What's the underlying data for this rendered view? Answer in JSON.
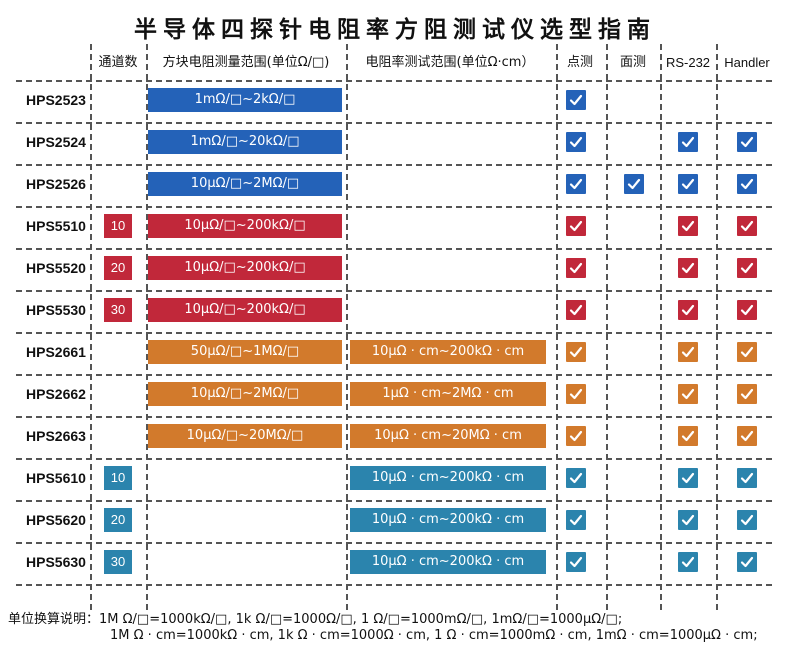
{
  "title": "半导体四探针电阻率方阻测试仪选型指南",
  "headers": {
    "channels": "通道数",
    "sheet_range": "方块电阻测量范围(单位Ω/□)",
    "resistivity_range": "电阻率测试范围(单位Ω·cm）",
    "point": "点测",
    "area": "面测",
    "rs232": "RS-232",
    "handler": "Handler"
  },
  "colors": {
    "blue": "#2462b8",
    "red": "#c1283a",
    "orange": "#d27a2c",
    "teal": "#2b84ad"
  },
  "check_icon": "checkmark-icon",
  "rows": [
    {
      "model": "HPS2523",
      "channels": "",
      "sheet": "1mΩ/□~2kΩ/□",
      "resistivity": "",
      "color": "blue",
      "point": true,
      "area": false,
      "rs232": false,
      "handler": false
    },
    {
      "model": "HPS2524",
      "channels": "",
      "sheet": "1mΩ/□~20kΩ/□",
      "resistivity": "",
      "color": "blue",
      "point": true,
      "area": false,
      "rs232": true,
      "handler": true
    },
    {
      "model": "HPS2526",
      "channels": "",
      "sheet": "10μΩ/□~2MΩ/□",
      "resistivity": "",
      "color": "blue",
      "point": true,
      "area": true,
      "rs232": true,
      "handler": true
    },
    {
      "model": "HPS5510",
      "channels": "10",
      "sheet": "10μΩ/□~200kΩ/□",
      "resistivity": "",
      "color": "red",
      "point": true,
      "area": false,
      "rs232": true,
      "handler": true
    },
    {
      "model": "HPS5520",
      "channels": "20",
      "sheet": "10μΩ/□~200kΩ/□",
      "resistivity": "",
      "color": "red",
      "point": true,
      "area": false,
      "rs232": true,
      "handler": true
    },
    {
      "model": "HPS5530",
      "channels": "30",
      "sheet": "10μΩ/□~200kΩ/□",
      "resistivity": "",
      "color": "red",
      "point": true,
      "area": false,
      "rs232": true,
      "handler": true
    },
    {
      "model": "HPS2661",
      "channels": "",
      "sheet": "50μΩ/□~1MΩ/□",
      "resistivity": "10μΩ · cm~200kΩ · cm",
      "color": "orange",
      "point": true,
      "area": false,
      "rs232": true,
      "handler": true
    },
    {
      "model": "HPS2662",
      "channels": "",
      "sheet": "10μΩ/□~2MΩ/□",
      "resistivity": "1μΩ · cm~2MΩ · cm",
      "color": "orange",
      "point": true,
      "area": false,
      "rs232": true,
      "handler": true
    },
    {
      "model": "HPS2663",
      "channels": "",
      "sheet": "10μΩ/□~20MΩ/□",
      "resistivity": "10μΩ · cm~20MΩ · cm",
      "color": "orange",
      "point": true,
      "area": false,
      "rs232": true,
      "handler": true
    },
    {
      "model": "HPS5610",
      "channels": "10",
      "sheet": "",
      "resistivity": "10μΩ · cm~200kΩ · cm",
      "color": "teal",
      "point": true,
      "area": false,
      "rs232": true,
      "handler": true
    },
    {
      "model": "HPS5620",
      "channels": "20",
      "sheet": "",
      "resistivity": "10μΩ · cm~200kΩ · cm",
      "color": "teal",
      "point": true,
      "area": false,
      "rs232": true,
      "handler": true
    },
    {
      "model": "HPS5630",
      "channels": "30",
      "sheet": "",
      "resistivity": "10μΩ · cm~200kΩ · cm",
      "color": "teal",
      "point": true,
      "area": false,
      "rs232": true,
      "handler": true
    }
  ],
  "notes": {
    "line1": "单位换算说明：1M Ω/□=1000kΩ/□, 1k Ω/□=1000Ω/□, 1 Ω/□=1000mΩ/□, 1mΩ/□=1000μΩ/□;",
    "line2": "1M Ω · cm=1000kΩ · cm, 1k Ω · cm=1000Ω · cm, 1 Ω · cm=1000mΩ · cm, 1mΩ · cm=1000μΩ · cm;"
  }
}
